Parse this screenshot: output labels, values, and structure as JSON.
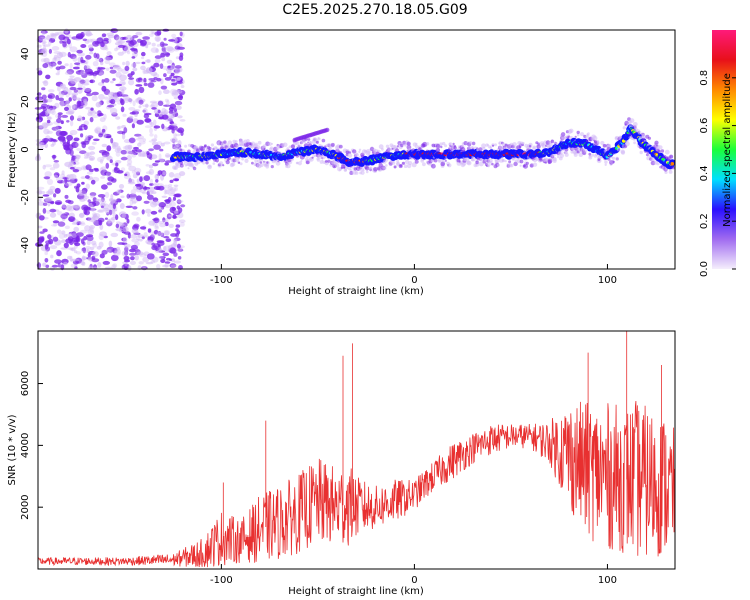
{
  "title": "C2E5.2025.270.18.05.G09",
  "colors": {
    "accent": "#e83030",
    "colormap": [
      "#d2b8f5",
      "#7a24e8",
      "#1515ff",
      "#00e5ff",
      "#1aff3a",
      "#ffff00",
      "#ff7f00",
      "#e8101a",
      "#ff1a7a"
    ]
  },
  "chart_data": [
    {
      "type": "heatmap",
      "xlabel": "Height of straight line (km)",
      "ylabel": "Frequency (Hz)",
      "xlim": [
        -195,
        135
      ],
      "ylim": [
        -50,
        50
      ],
      "xticks": [
        -100,
        0,
        100
      ],
      "yticks": [
        -40,
        -20,
        0,
        20,
        40
      ],
      "colorbar": {
        "label": "Normalized spectral amplitude",
        "range": [
          0,
          1
        ],
        "ticks": [
          0.0,
          0.2,
          0.4,
          0.6,
          0.8
        ]
      },
      "ridge": {
        "description_points_x": [
          -125,
          -110,
          -90,
          -70,
          -60,
          -50,
          -42,
          -35,
          -25,
          -15,
          -5,
          0,
          20,
          40,
          60,
          70,
          80,
          90,
          100,
          108,
          112,
          118,
          125,
          132
        ],
        "frequency_y": [
          -3,
          -3,
          -1,
          -3,
          -1,
          0,
          -2,
          -5,
          -5,
          -3,
          -2,
          -2,
          -2,
          -2,
          -2,
          -1,
          3,
          2,
          -3,
          3,
          9,
          3,
          -2,
          -6
        ]
      }
    },
    {
      "type": "line",
      "xlabel": "Height of straight line (km)",
      "ylabel": "SNR (10 * v/v)",
      "xlim": [
        -195,
        135
      ],
      "ylim": [
        0,
        7700
      ],
      "xticks": [
        -100,
        0,
        100
      ],
      "yticks": [
        2000,
        4000,
        6000
      ],
      "series": [
        {
          "envelope_x": [
            -195,
            -150,
            -125,
            -110,
            -100,
            -90,
            -80,
            -70,
            -60,
            -50,
            -40,
            -35,
            -30,
            -20,
            -10,
            0,
            10,
            20,
            30,
            40,
            50,
            60,
            70,
            80,
            90,
            100,
            110,
            115,
            120,
            130,
            135
          ],
          "mean_y": [
            250,
            250,
            300,
            500,
            1000,
            900,
            1300,
            1500,
            1800,
            2200,
            2000,
            2100,
            2000,
            2000,
            2200,
            2400,
            3000,
            3500,
            3900,
            4200,
            4300,
            4300,
            4100,
            3700,
            3200,
            3000,
            2900,
            2900,
            2800,
            2700,
            2500
          ],
          "spread_y": [
            120,
            130,
            200,
            500,
            900,
            700,
            1100,
            1200,
            1300,
            1400,
            1300,
            1400,
            1000,
            700,
            700,
            500,
            500,
            600,
            500,
            500,
            400,
            400,
            700,
            1800,
            2200,
            2400,
            2400,
            2600,
            2500,
            2300,
            2000
          ],
          "spikes": [
            [
              -37,
              6900
            ],
            [
              -32,
              7300
            ],
            [
              -99,
              2800
            ],
            [
              -77,
              4800
            ],
            [
              110,
              7700
            ],
            [
              90,
              7000
            ],
            [
              128,
              6600
            ]
          ]
        }
      ]
    }
  ]
}
